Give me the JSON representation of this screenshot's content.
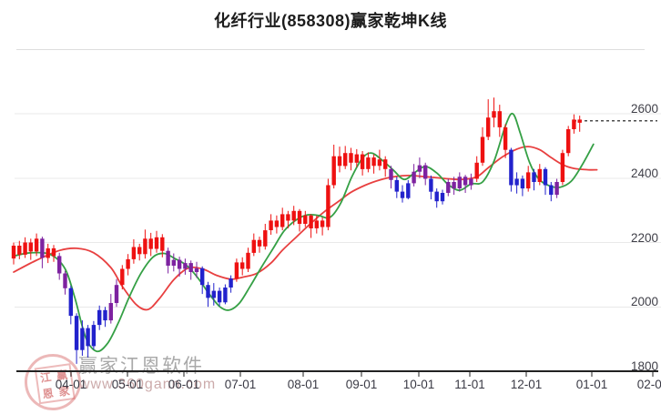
{
  "title": "化纤行业(858308)赢家乾坤K线",
  "watermark": {
    "stamp_chars": [
      "江",
      "赢",
      "恩",
      "家"
    ],
    "brand": "赢家江恩软件",
    "site": "www.360gann.com"
  },
  "colors": {
    "up": "#ee1111",
    "down": "#2222cc",
    "neutral": "#7d22a0",
    "line_fast": "#35a045",
    "line_slow": "#e84040",
    "grid": "#e9e9e9",
    "axis": "#222222",
    "label": "#3a3a45",
    "last_price_line": "#111111"
  },
  "chart_data": {
    "type": "candlestick",
    "title": "化纤行业(858308)赢家乾坤K线",
    "x_axis": {
      "tick_labels": [
        "04-01",
        "05-01",
        "06-01",
        "07-01",
        "08-01",
        "09-01",
        "10-01",
        "11-01",
        "12-01",
        "01-01",
        "02-01"
      ],
      "tick_x": [
        78,
        140,
        202,
        264,
        333,
        397,
        460,
        516,
        578,
        650,
        717
      ]
    },
    "y_axis": {
      "side": "right",
      "tick_labels": [
        "1800",
        "2000",
        "2200",
        "2400",
        "2600"
      ],
      "tick_values": [
        1800,
        2000,
        2200,
        2400,
        2600
      ],
      "ylim": [
        1770,
        2690
      ]
    },
    "last_price": 2578,
    "candles": [
      [
        2150,
        2190,
        2132,
        2200,
        0
      ],
      [
        2190,
        2162,
        2148,
        2205,
        0
      ],
      [
        2162,
        2200,
        2152,
        2216,
        0
      ],
      [
        2200,
        2172,
        2146,
        2212,
        0
      ],
      [
        2172,
        2212,
        2158,
        2228,
        0
      ],
      [
        2212,
        2152,
        2120,
        2218,
        2
      ],
      [
        2152,
        2182,
        2136,
        2196,
        0
      ],
      [
        2182,
        2158,
        2140,
        2192,
        0
      ],
      [
        2158,
        2104,
        2084,
        2168,
        2
      ],
      [
        2104,
        2058,
        2038,
        2112,
        2
      ],
      [
        2058,
        1972,
        1946,
        2066,
        1
      ],
      [
        1972,
        1866,
        1823,
        1980,
        1
      ],
      [
        1866,
        1934,
        1848,
        1958,
        1
      ],
      [
        1934,
        1878,
        1843,
        1944,
        1
      ],
      [
        1878,
        1944,
        1868,
        1956,
        1
      ],
      [
        1944,
        1990,
        1928,
        2004,
        1
      ],
      [
        1990,
        1958,
        1938,
        2000,
        1
      ],
      [
        1958,
        2012,
        1948,
        2040,
        2
      ],
      [
        2012,
        2068,
        2000,
        2086,
        2
      ],
      [
        2068,
        2118,
        2054,
        2130,
        0
      ],
      [
        2118,
        2148,
        2098,
        2164,
        0
      ],
      [
        2148,
        2186,
        2134,
        2210,
        0
      ],
      [
        2186,
        2164,
        2144,
        2196,
        0
      ],
      [
        2164,
        2212,
        2150,
        2240,
        0
      ],
      [
        2212,
        2180,
        2158,
        2230,
        0
      ],
      [
        2180,
        2216,
        2168,
        2236,
        0
      ],
      [
        2216,
        2174,
        2154,
        2226,
        0
      ],
      [
        2174,
        2128,
        2104,
        2184,
        2
      ],
      [
        2128,
        2146,
        2110,
        2166,
        2
      ],
      [
        2146,
        2118,
        2094,
        2156,
        2
      ],
      [
        2118,
        2136,
        2100,
        2150,
        2
      ],
      [
        2136,
        2108,
        2084,
        2144,
        2
      ],
      [
        2108,
        2120,
        2090,
        2140,
        2
      ],
      [
        2120,
        2068,
        2040,
        2126,
        1
      ],
      [
        2068,
        2028,
        2000,
        2078,
        1
      ],
      [
        2028,
        2050,
        2004,
        2074,
        1
      ],
      [
        2050,
        2014,
        2003,
        2060,
        1
      ],
      [
        2014,
        2060,
        2008,
        2070,
        1
      ],
      [
        2060,
        2088,
        2044,
        2098,
        1
      ],
      [
        2088,
        2138,
        2078,
        2150,
        0
      ],
      [
        2138,
        2118,
        2098,
        2154,
        0
      ],
      [
        2118,
        2168,
        2108,
        2184,
        0
      ],
      [
        2168,
        2208,
        2158,
        2228,
        0
      ],
      [
        2208,
        2188,
        2168,
        2218,
        0
      ],
      [
        2188,
        2238,
        2178,
        2258,
        0
      ],
      [
        2238,
        2268,
        2224,
        2288,
        0
      ],
      [
        2268,
        2248,
        2228,
        2284,
        0
      ],
      [
        2248,
        2288,
        2238,
        2308,
        0
      ],
      [
        2288,
        2268,
        2244,
        2298,
        0
      ],
      [
        2268,
        2298,
        2254,
        2314,
        0
      ],
      [
        2298,
        2258,
        2234,
        2304,
        0
      ],
      [
        2258,
        2284,
        2248,
        2298,
        0
      ],
      [
        2284,
        2244,
        2214,
        2288,
        0
      ],
      [
        2244,
        2268,
        2228,
        2284,
        0
      ],
      [
        2268,
        2248,
        2222,
        2278,
        0
      ],
      [
        2248,
        2378,
        2238,
        2398,
        0
      ],
      [
        2378,
        2468,
        2368,
        2504,
        0
      ],
      [
        2468,
        2438,
        2418,
        2498,
        0
      ],
      [
        2438,
        2478,
        2428,
        2500,
        0
      ],
      [
        2478,
        2448,
        2424,
        2494,
        0
      ],
      [
        2448,
        2474,
        2434,
        2490,
        0
      ],
      [
        2474,
        2428,
        2408,
        2484,
        0
      ],
      [
        2428,
        2464,
        2418,
        2480,
        0
      ],
      [
        2464,
        2438,
        2414,
        2474,
        0
      ],
      [
        2438,
        2458,
        2424,
        2488,
        0
      ],
      [
        2458,
        2428,
        2404,
        2468,
        0
      ],
      [
        2428,
        2394,
        2368,
        2438,
        2
      ],
      [
        2394,
        2358,
        2338,
        2404,
        1
      ],
      [
        2358,
        2338,
        2324,
        2378,
        1
      ],
      [
        2338,
        2384,
        2334,
        2394,
        1
      ],
      [
        2384,
        2420,
        2374,
        2444,
        2
      ],
      [
        2420,
        2440,
        2400,
        2464,
        2
      ],
      [
        2440,
        2398,
        2378,
        2448,
        2
      ],
      [
        2398,
        2358,
        2334,
        2408,
        1
      ],
      [
        2358,
        2328,
        2308,
        2368,
        1
      ],
      [
        2328,
        2354,
        2318,
        2364,
        1
      ],
      [
        2354,
        2388,
        2344,
        2398,
        2
      ],
      [
        2388,
        2368,
        2348,
        2404,
        2
      ],
      [
        2368,
        2404,
        2358,
        2418,
        2
      ],
      [
        2404,
        2378,
        2354,
        2410,
        2
      ],
      [
        2378,
        2398,
        2364,
        2414,
        2
      ],
      [
        2398,
        2448,
        2388,
        2468,
        0
      ],
      [
        2448,
        2528,
        2438,
        2558,
        0
      ],
      [
        2528,
        2588,
        2518,
        2645,
        0
      ],
      [
        2588,
        2608,
        2558,
        2650,
        0
      ],
      [
        2608,
        2558,
        2528,
        2628,
        0
      ],
      [
        2558,
        2488,
        2462,
        2568,
        0
      ],
      [
        2488,
        2378,
        2358,
        2494,
        1
      ],
      [
        2378,
        2398,
        2352,
        2418,
        1
      ],
      [
        2398,
        2368,
        2344,
        2408,
        1
      ],
      [
        2368,
        2418,
        2358,
        2438,
        0
      ],
      [
        2418,
        2388,
        2362,
        2428,
        1
      ],
      [
        2388,
        2428,
        2378,
        2444,
        0
      ],
      [
        2428,
        2378,
        2348,
        2434,
        1
      ],
      [
        2378,
        2348,
        2328,
        2388,
        1
      ],
      [
        2348,
        2388,
        2338,
        2398,
        2
      ],
      [
        2388,
        2478,
        2378,
        2488,
        0
      ],
      [
        2478,
        2552,
        2468,
        2562,
        0
      ],
      [
        2552,
        2582,
        2538,
        2598,
        0
      ],
      [
        2582,
        2572,
        2544,
        2594,
        0
      ]
    ],
    "lines": {
      "fast_green": [
        [
          0,
          2158
        ],
        [
          3,
          2168
        ],
        [
          6.5,
          2162
        ],
        [
          9,
          2118
        ],
        [
          10.7,
          2028
        ],
        [
          12.6,
          1905
        ],
        [
          14.5,
          1862
        ],
        [
          16.4,
          1886
        ],
        [
          18.3,
          1950
        ],
        [
          20.2,
          2030
        ],
        [
          22.3,
          2105
        ],
        [
          24.4,
          2155
        ],
        [
          26.3,
          2166
        ],
        [
          28.2,
          2150
        ],
        [
          30.3,
          2128
        ],
        [
          32.3,
          2088
        ],
        [
          34.2,
          2040
        ],
        [
          36.1,
          2000
        ],
        [
          37.7,
          1990
        ],
        [
          39.5,
          2012
        ],
        [
          41.4,
          2065
        ],
        [
          43.3,
          2122
        ],
        [
          45.4,
          2182
        ],
        [
          47.3,
          2236
        ],
        [
          49.4,
          2270
        ],
        [
          51.4,
          2286
        ],
        [
          53.3,
          2284
        ],
        [
          55.3,
          2278
        ],
        [
          57.2,
          2322
        ],
        [
          59.1,
          2402
        ],
        [
          61,
          2462
        ],
        [
          62.6,
          2478
        ],
        [
          64.5,
          2455
        ],
        [
          66.4,
          2425
        ],
        [
          68.3,
          2396
        ],
        [
          70.2,
          2418
        ],
        [
          72,
          2436
        ],
        [
          74,
          2416
        ],
        [
          76,
          2380
        ],
        [
          78,
          2362
        ],
        [
          80,
          2382
        ],
        [
          82,
          2388
        ],
        [
          84,
          2452
        ],
        [
          86,
          2562
        ],
        [
          87.3,
          2600
        ],
        [
          88.6,
          2540
        ],
        [
          90.2,
          2450
        ],
        [
          91.8,
          2398
        ],
        [
          93.7,
          2376
        ],
        [
          95.6,
          2372
        ],
        [
          97.5,
          2390
        ],
        [
          99.4,
          2440
        ],
        [
          101.4,
          2505
        ]
      ],
      "slow_red": [
        [
          0,
          2108
        ],
        [
          4,
          2145
        ],
        [
          8,
          2175
        ],
        [
          11,
          2182
        ],
        [
          14,
          2168
        ],
        [
          17,
          2122
        ],
        [
          19,
          2064
        ],
        [
          21.5,
          2006
        ],
        [
          23.5,
          1992
        ],
        [
          25.5,
          2026
        ],
        [
          28,
          2084
        ],
        [
          30.5,
          2120
        ],
        [
          33,
          2118
        ],
        [
          35.5,
          2098
        ],
        [
          38,
          2086
        ],
        [
          40,
          2092
        ],
        [
          42.5,
          2104
        ],
        [
          45,
          2136
        ],
        [
          47,
          2176
        ],
        [
          49.5,
          2218
        ],
        [
          52,
          2260
        ],
        [
          54.5,
          2298
        ],
        [
          57,
          2330
        ],
        [
          59,
          2356
        ],
        [
          61.5,
          2378
        ],
        [
          64,
          2394
        ],
        [
          66.5,
          2404
        ],
        [
          69,
          2408
        ],
        [
          71,
          2406
        ],
        [
          73.5,
          2402
        ],
        [
          76,
          2398
        ],
        [
          78.5,
          2396
        ],
        [
          81,
          2404
        ],
        [
          83,
          2432
        ],
        [
          85.5,
          2466
        ],
        [
          88,
          2490
        ],
        [
          90,
          2498
        ],
        [
          92,
          2488
        ],
        [
          94,
          2464
        ],
        [
          96,
          2442
        ],
        [
          98,
          2430
        ],
        [
          100.5,
          2426
        ],
        [
          102,
          2426
        ]
      ]
    }
  }
}
